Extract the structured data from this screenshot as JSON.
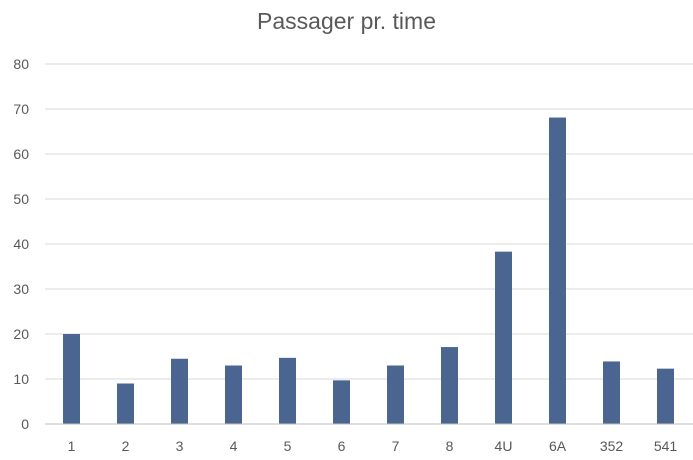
{
  "chart_data": {
    "type": "bar",
    "title": "Passager pr. time",
    "xlabel": "",
    "ylabel": "",
    "categories": [
      "1",
      "2",
      "3",
      "4",
      "5",
      "6",
      "7",
      "8",
      "4U",
      "6A",
      "352",
      "541"
    ],
    "values": [
      20,
      9,
      14.5,
      13,
      14.7,
      9.7,
      13,
      17.1,
      38.3,
      68.1,
      13.9,
      12.3
    ],
    "ylim": [
      0,
      80
    ],
    "yticks": [
      0,
      10,
      20,
      30,
      40,
      50,
      60,
      70,
      80
    ],
    "grid": true,
    "legend": "none",
    "colors": {
      "bar": "#4a6690",
      "grid": "#d9d9d9",
      "axis": "#bfbfbf",
      "text": "#595959"
    }
  }
}
